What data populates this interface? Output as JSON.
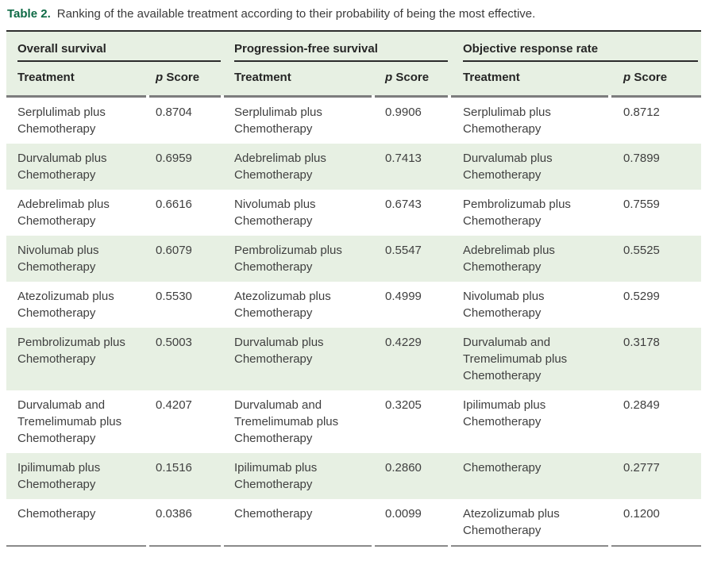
{
  "caption": {
    "label": "Table 2.",
    "text": "Ranking of the available treatment according to their probability of being the most effective."
  },
  "colors": {
    "accent_green": "#0e6a45",
    "band_green": "#e7f0e3",
    "top_rule": "#2e2e2e",
    "gray_rule": "#7d7d7d",
    "body_text": "#404040"
  },
  "table": {
    "groups": [
      {
        "title": "Overall survival"
      },
      {
        "title": "Progression-free survival"
      },
      {
        "title": "Objective response rate"
      }
    ],
    "headers": {
      "treatment": "Treatment",
      "p": "p",
      "score": "Score"
    },
    "rows": [
      {
        "os": {
          "name": "Serplulimab plus Chemotherapy",
          "score": "0.8704"
        },
        "pfs": {
          "name": "Serplulimab plus Chemotherapy",
          "score": "0.9906"
        },
        "orr": {
          "name": "Serplulimab plus Chemotherapy",
          "score": "0.8712"
        }
      },
      {
        "os": {
          "name": "Durvalumab plus Chemotherapy",
          "score": "0.6959"
        },
        "pfs": {
          "name": "Adebrelimab plus Chemotherapy",
          "score": "0.7413"
        },
        "orr": {
          "name": "Durvalumab plus Chemotherapy",
          "score": "0.7899"
        }
      },
      {
        "os": {
          "name": "Adebrelimab plus Chemotherapy",
          "score": "0.6616"
        },
        "pfs": {
          "name": "Nivolumab plus Chemotherapy",
          "score": "0.6743"
        },
        "orr": {
          "name": "Pembrolizumab plus Chemotherapy",
          "score": "0.7559"
        }
      },
      {
        "os": {
          "name": "Nivolumab plus Chemotherapy",
          "score": "0.6079"
        },
        "pfs": {
          "name": "Pembrolizumab plus Chemotherapy",
          "score": "0.5547"
        },
        "orr": {
          "name": "Adebrelimab plus Chemotherapy",
          "score": "0.5525"
        }
      },
      {
        "os": {
          "name": "Atezolizumab plus Chemotherapy",
          "score": "0.5530"
        },
        "pfs": {
          "name": "Atezolizumab plus Chemotherapy",
          "score": "0.4999"
        },
        "orr": {
          "name": "Nivolumab plus Chemotherapy",
          "score": "0.5299"
        }
      },
      {
        "os": {
          "name": "Pembrolizumab plus Chemotherapy",
          "score": "0.5003"
        },
        "pfs": {
          "name": "Durvalumab plus Chemotherapy",
          "score": "0.4229"
        },
        "orr": {
          "name": "Durvalumab and Tremelimumab plus Chemotherapy",
          "score": "0.3178"
        }
      },
      {
        "os": {
          "name": "Durvalumab and Tremelimumab plus Chemotherapy",
          "score": "0.4207"
        },
        "pfs": {
          "name": "Durvalumab and Tremelimumab plus Chemotherapy",
          "score": "0.3205"
        },
        "orr": {
          "name": "Ipilimumab plus Chemotherapy",
          "score": "0.2849"
        }
      },
      {
        "os": {
          "name": "Ipilimumab plus Chemotherapy",
          "score": "0.1516"
        },
        "pfs": {
          "name": "Ipilimumab plus Chemotherapy",
          "score": "0.2860"
        },
        "orr": {
          "name": "Chemotherapy",
          "score": "0.2777"
        }
      },
      {
        "os": {
          "name": "Chemotherapy",
          "score": "0.0386"
        },
        "pfs": {
          "name": "Chemotherapy",
          "score": "0.0099"
        },
        "orr": {
          "name": "Atezolizumab plus Chemotherapy",
          "score": "0.1200"
        }
      }
    ]
  }
}
